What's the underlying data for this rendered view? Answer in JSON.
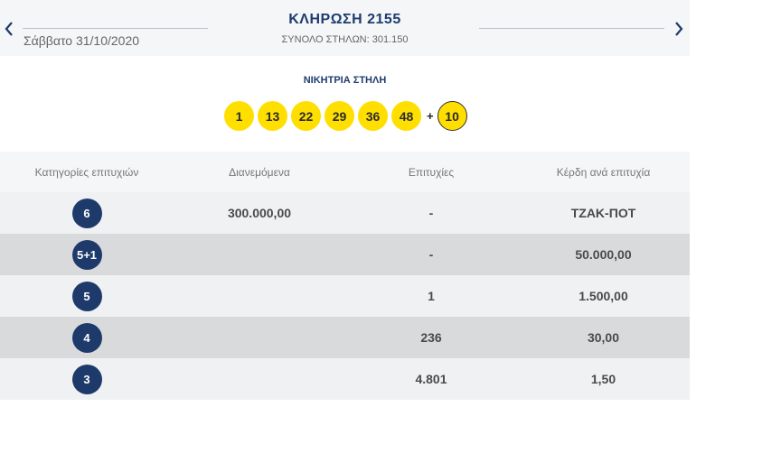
{
  "header": {
    "title": "ΚΛΗΡΩΣΗ 2155",
    "date": "Σάββατο 31/10/2020",
    "columns_label": "ΣΥΝΟΛΟ ΣΤΗΛΩΝ: 301.150"
  },
  "winning": {
    "title": "ΝΙΚΗΤΡΙΑ ΣΤΗΛΗ",
    "numbers": [
      "1",
      "13",
      "22",
      "29",
      "36",
      "48"
    ],
    "plus": "+",
    "joker": "10"
  },
  "table": {
    "headers": [
      "Κατηγορίες επιτυχιών",
      "Διανεμόμενα",
      "Επιτυχίες",
      "Κέρδη ανά επιτυχία"
    ],
    "rows": [
      {
        "category": "6",
        "distributed": "300.000,00",
        "winners": "-",
        "prize": "ΤΖΑΚ-ΠΟΤ"
      },
      {
        "category": "5+1",
        "distributed": "",
        "winners": "-",
        "prize": "50.000,00"
      },
      {
        "category": "5",
        "distributed": "",
        "winners": "1",
        "prize": "1.500,00"
      },
      {
        "category": "4",
        "distributed": "",
        "winners": "236",
        "prize": "30,00"
      },
      {
        "category": "3",
        "distributed": "",
        "winners": "4.801",
        "prize": "1,50"
      }
    ]
  },
  "colors": {
    "accent": "#1e3a6b",
    "ball": "#ffdf00",
    "header_bg": "#f4f6f8",
    "row_dark": "#d9dadb",
    "row_light": "#f0f1f2"
  },
  "icons": [
    "chevron-left-icon",
    "chevron-right-icon"
  ]
}
